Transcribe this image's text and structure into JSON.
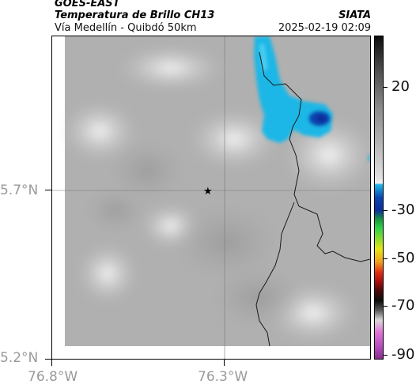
{
  "header": {
    "product": "GOES-EAST",
    "title": "Temperatura de Brillo CH13",
    "subtitle": "Vía Medellín - Quibdó 50km",
    "source": "SIATA",
    "timestamp": "2025-02-19 02:09"
  },
  "map": {
    "lat_labels": [
      "5.7°N",
      "5.2°N"
    ],
    "lon_labels": [
      "76.8°W",
      "76.3°W"
    ],
    "marker": "star",
    "marker_icon": "★"
  },
  "colorbar": {
    "labels": [
      "20",
      "-30",
      "-50",
      "-70",
      "-90"
    ],
    "units": "",
    "colors": {
      "warm": "#bdbdbd",
      "cold_cyan": "#1fb7e6",
      "deep_blue": "#0a2f99",
      "purple": "#b64fbf"
    }
  }
}
